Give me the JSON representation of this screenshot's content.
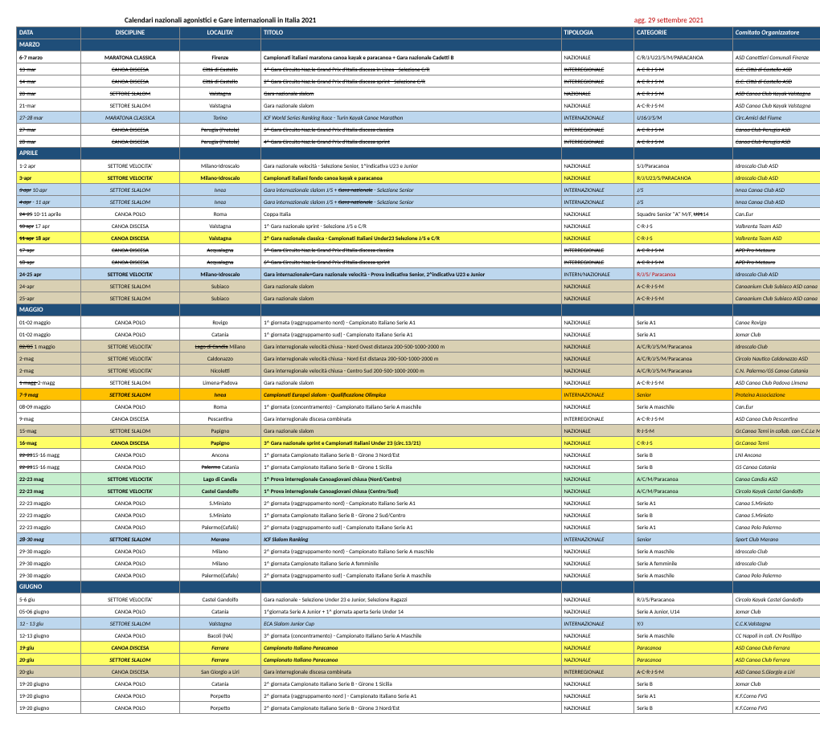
{
  "title": "Calendari nazionali agonistici e Gare internazionali in Italia 2021",
  "updated": "agg. 29 settembre 2021",
  "headers": [
    "DATA",
    "DISCIPLINE",
    "LOCALITA'",
    "TITOLO",
    "TIPOLOGIA",
    "CATEGORIE",
    "Comitato Organizzatore"
  ],
  "months": {
    "MARZO": "MARZO",
    "APRILE": "APRILE",
    "MAGGIO": "MAGGIO",
    "GIUGNO": "GIUGNO"
  },
  "rows": [
    {
      "m": "MARZO"
    },
    {
      "d": "6-7 marzo",
      "disc": "MARATONA CLASSICA",
      "loc": "Firenze",
      "tit": "Campionati italiani maratona canoa kayak e paracanoa + Gara nazionale Cadetti B",
      "tip": "NAZIONALE",
      "cat": "C/R/J/U23/S/M/PARACANOA",
      "org": "ASD Canottieri Comunali Firenze",
      "b": 1
    },
    {
      "d": "13-mar",
      "disc": "CANOA DISCESA",
      "loc": "Città di Castello",
      "tit": "1^ Gara Circuito Naz.le Grand Prix d'Italia discesa in Linea - Selezione C/R",
      "tip": "INTERREGIONALE",
      "cat": "A-C-R-J-S-M",
      "org": "G.C. Città di Castello ASD",
      "s": 1
    },
    {
      "d": "14-mar",
      "disc": "CANOA DISCESA",
      "loc": "Città di Castello",
      "tit": "2^ Gara Circuito Naz.le Grand Prix d'Italia discesa sprint - Selezione C/R",
      "tip": "INTERREGIONALE",
      "cat": "A-C-R-J-S-M",
      "org": "G.C. Città di Castello ASD",
      "s": 1
    },
    {
      "d": "20-mar",
      "disc": "SETTORE SLALOM",
      "loc": "Valstagna",
      "tit": "Gara nazionale slalom",
      "tip": "NAZIONALE",
      "cat": "A-C-R-J-S-M",
      "org": "ASD Canoa Club Kayak Valstagna",
      "s": 1
    },
    {
      "d": "21-mar",
      "disc": "SETTORE SLALOM",
      "loc": "Valstagna",
      "tit": "Gara nazionale slalom",
      "tip": "NAZIONALE",
      "cat": "A-C-R-J-S-M",
      "org": "ASD Canoa Club Kayak Valstagna"
    },
    {
      "d": "27-28 mar",
      "disc": "MARATONA CLASSICA",
      "loc": "Torino",
      "tit": "ICF World Series Ranking Race - Turin Kayak Canoe Marathon",
      "tip": "INTERNAZIONALE",
      "cat": "U16/J/S/M",
      "org": "Circ.Amici del Fiume",
      "i": 1,
      "bg": "blue"
    },
    {
      "d": "27-mar",
      "disc": "CANOA DISCESA",
      "loc": "Perugia (Pretola)",
      "tit": "3^ Gara Circuito Naz.le Grand Prix d'Italia discesa classica",
      "tip": "INTERREGIONALE",
      "cat": "A-C-R-J-S-M",
      "org": "Canoa Club Perugia ASD",
      "s": 1
    },
    {
      "d": "28-mar",
      "disc": "CANOA DISCESA",
      "loc": "Perugia (Pretola)",
      "tit": "4^ Gara Circuito Naz.le Grand Prix d'Italia discesa sprint",
      "tip": "INTERREGIONALE",
      "cat": "A-C-R-J-S-M",
      "org": "Canoa Club Perugia ASD",
      "s": 1
    },
    {
      "m": "APRILE"
    },
    {
      "d": "1-2 apr",
      "disc": "SETTORE VELOCITA'",
      "loc": "Milano-Idroscalo",
      "tit": "Gara nazionale velocità - Selezione Senior, 1^indicativa U23 e Junior",
      "tip": "NAZIONALE",
      "cat": "S/J/Paracanoa",
      "org": "Idroscalo Club ASD"
    },
    {
      "d": "3-apr",
      "disc": "SETTORE VELOCITA'",
      "loc": "Milano-Idroscalo",
      "tit": "Campionati italiani fondo canoa kayak e paracanoa",
      "tip": "NAZIONALE",
      "cat": "R/J/U23/S/PARACANOA",
      "org": "Idroscalo Club ASD",
      "b": 1,
      "bg": "yellow"
    },
    {
      "d": "<s>3 apr</s> 10 apr",
      "disc": "SETTORE SLALOM",
      "loc": "Ivrea",
      "tit": "Gara internazionale slalom J/S + <s>Gara nazionale</s> - Selezione Senior",
      "tip": "INTERNAZIONALE",
      "cat": "J/S",
      "org": "Ivrea Canoa Club ASD",
      "i": 1,
      "bg": "blue"
    },
    {
      "d": "<s>4 apr</s> - 11 apr",
      "disc": "SETTORE SLALOM",
      "loc": "Ivrea",
      "tit": "Gara internazionale slalom J/S + <s>Gara nazionale</s> - Selezione Senior",
      "tip": "INTERNAZIONALE",
      "cat": "J/S",
      "org": "Ivrea Canoa Club ASD",
      "i": 1,
      "bg": "blue"
    },
    {
      "d": "<s>24-25</s> 10-11 aprile",
      "disc": "CANOA POLO",
      "loc": "Roma",
      "tit": "Coppa Italia",
      "tip": "NAZIONALE",
      "cat": "Squadre Senior \"A\" M/F, <s>U21</s>14",
      "org": "Can.Eur"
    },
    {
      "d": "<s>10 apr</s> 17 apr",
      "disc": "CANOA DISCESA",
      "loc": "Valstagna",
      "tit": "1^ Gara nazionale sprint - Selezione J/S e C/R",
      "tip": "NAZIONALE",
      "cat": "C-R-J-S",
      "org": "Valbrenta Team ASD"
    },
    {
      "d": "<s>11 apr</s> 18 apr",
      "disc": "CANOA DISCESA",
      "loc": "Valstagna",
      "tit": "2^ Gara nazionale classica - Campionati Italiani Under23 Selezione J/S e C/R",
      "tip": "NAZIONALE",
      "cat": "C-R-J-S",
      "org": "Valbrenta Team ASD",
      "b": 1,
      "bg": "yellow"
    },
    {
      "d": "17-apr",
      "disc": "CANOA DISCESA",
      "loc": "Acqualagna",
      "tit": "5^ Gara Circuito Naz.le Grand Prix d'Italia discesa classica",
      "tip": "INTERREGIONALE",
      "cat": "A-C-R-J-S-M",
      "org": "APD Pro Metauro",
      "s": 1
    },
    {
      "d": "18-apr",
      "disc": "CANOA DISCESA",
      "loc": "Acqualagna",
      "tit": "6^ Gara Circuito Naz.le Grand Prix d'Italia discesa sprint",
      "tip": "INTERREGIONALE",
      "cat": "A-C-R-J-S-M",
      "org": "APD Pro Metauro",
      "s": 1
    },
    {
      "d": "24-25 apr",
      "disc": "SETTORE VELOCITA'",
      "loc": "Milano-Idroscalo",
      "tit": "Gara internazionale+Gara nazionale velocità - Prova indicativa Senior, 2^indicativa U23 e Junior",
      "tip": "INTERN/NAZIONALE",
      "cat": "R/J/S/ Paracanoa",
      "org": "Idroscalo Club ASD",
      "bg": "blue",
      "b": 1,
      "note": 1
    },
    {
      "d": "24-apr",
      "disc": "SETTORE SLALOM",
      "loc": "Subiaco",
      "tit": "Gara nazionale slalom",
      "tip": "NAZIONALE",
      "cat": "A-C-R-J-S-M",
      "org": "Canoanium Club Subiaco ASD canoa",
      "bg": "tan"
    },
    {
      "d": "25-apr",
      "disc": "SETTORE SLALOM",
      "loc": "Subiaco",
      "tit": "Gara nazionale slalom",
      "tip": "NAZIONALE",
      "cat": "A-C-R-J-S-M",
      "org": "Canoanium Club Subiaco ASD canoa",
      "bg": "tan"
    },
    {
      "m": "MAGGIO"
    },
    {
      "d": "01-02 maggio",
      "disc": "CANOA POLO",
      "loc": "Rovigo",
      "tit": "1^ giornata (raggruppamento nord) - Campionato Italiano Serie A1",
      "tip": "NAZIONALE",
      "cat": "Serie A1",
      "org": "Canoe Rovigo"
    },
    {
      "d": "01-02 maggio",
      "disc": "CANOA POLO",
      "loc": "Catania",
      "tit": "1^ giornata (raggruppamento sud) - Campionato Italiano Serie A1",
      "tip": "NAZIONALE",
      "cat": "Serie A1",
      "org": "Jomar Club"
    },
    {
      "d": "<s>02/05</s> 1 maggio",
      "disc": "SETTORE VELOCITA'",
      "loc": "<s>Lago di Candia</s> Milano",
      "tit": "Gara interregionale velocità chiusa - Nord Ovest distanza 200-500-1000-2000 m",
      "tip": "NAZIONALE",
      "cat": "A/C/R/J/S/M/Paracanoa",
      "org": "Idroscalo Club",
      "bg": "tan"
    },
    {
      "d": "2-mag",
      "disc": "SETTORE VELOCITA'",
      "loc": "Caldonazzo",
      "tit": "Gara interregionale velocità chiusa - Nord Est distanza 200-500-1000-2000 m",
      "tip": "NAZIONALE",
      "cat": "A/C/R/J/S/M/Paracanoa",
      "org": "Circolo Nautico Caldonazzo ASD",
      "bg": "tan"
    },
    {
      "d": "2-mag",
      "disc": "SETTORE VELOCITA'",
      "loc": "Nicoletti",
      "tit": "Gara interregionale velocità chiusa - Centro Sud 200-500-1000-2000 m",
      "tip": "NAZIONALE",
      "cat": "A/C/R/J/S/M/Paracanoa",
      "org": "C.N. Palermo/GS Canoa Catania",
      "bg": "tan"
    },
    {
      "d": "<s>1 magg-</s>2-magg",
      "disc": "SETTORE SLALOM",
      "loc": "Limena-Padova",
      "tit": "Gara nazionale slalom",
      "tip": "NAZIONALE",
      "cat": "A-C-R-J-S-M",
      "org": "ASD Canoa Club Padova Limena"
    },
    {
      "d": "7-9 mag",
      "disc": "SETTORE SLALOM",
      "loc": "Ivrea",
      "tit": "Campionati Europei slalom - Qualificazione Olimpica",
      "tip": "INTERNAZIONALE",
      "cat": "Senior",
      "org": "Proteina Associazione",
      "i": 1,
      "bg": "orange",
      "b": 1
    },
    {
      "d": "08-09 maggio",
      "disc": "CANOA POLO",
      "loc": "Roma",
      "tit": "1^ giornata (concentramento) - Campionato Italiano Serie A maschile",
      "tip": "NAZIONALE",
      "cat": "Serie A maschile",
      "org": "Can.Eur"
    },
    {
      "d": "9-mag",
      "disc": "CANOA DISCESA",
      "loc": "Pescantina",
      "tit": "Gara interregionale discesa combinata",
      "tip": "INTERREGIONALE",
      "cat": "A-C-R-J-S-M",
      "org": "ASD Canoa Club Pescantina"
    },
    {
      "d": "15-mag",
      "disc": "SETTORE SLALOM",
      "loc": "Papigno",
      "tit": "Gara nazionale slalom",
      "tip": "NAZIONALE",
      "cat": "R-J-S-M",
      "org": "Gr.Canoa Terni in collab. con C.C.Le Marmore",
      "bg": "tan"
    },
    {
      "d": "16-mag",
      "disc": "CANOA DISCESA",
      "loc": "Papigno",
      "tit": "3^ Gara nazionale sprint e Campionati Italiani Under 23 (circ.13/21)",
      "tip": "NAZIONALE",
      "cat": "C-R-J-S",
      "org": "Gr.Canoa Terni",
      "bg": "yellow",
      "b": 1
    },
    {
      "d": "<s>22-23</s>15-16 magg",
      "disc": "CANOA POLO",
      "loc": "Ancona",
      "tit": "1^ giornata Campionato Italiano Serie B - Girone 3 Nord/Est",
      "tip": "NAZIONALE",
      "cat": "Serie B",
      "org": "LNI Ancona"
    },
    {
      "d": "<s>22-23</s>15-16 magg",
      "disc": "CANOA POLO",
      "loc": "<s>Palermo</s> Catania",
      "tit": "1^ giornata Campionato Italiano Serie B - Girone 1 Sicilia",
      "tip": "NAZIONALE",
      "cat": "Serie B",
      "org": "GS Canoa Catania"
    },
    {
      "d": "22-23 mag",
      "disc": "SETTORE VELOCITA'",
      "loc": "Lago di Candia",
      "tit": "1^ Prova interregionale Canoagiovani chiusa (Nord/Centro)",
      "tip": "NAZIONALE",
      "cat": "A/C/M/Paracanoa",
      "org": "Canoa Candia ASD",
      "bg": "green",
      "b": 1
    },
    {
      "d": "22-23 mag",
      "disc": "SETTORE VELOCITA'",
      "loc": "Castel Gandolfo",
      "tit": "1^ Prova interregionale Canoagiovani chiusa (Centro/Sud)",
      "tip": "NAZIONALE",
      "cat": "A/C/M/Paracanoa",
      "org": "Circolo Kayak Castel Gandolfo",
      "bg": "green",
      "b": 1
    },
    {
      "d": "22-23 maggio",
      "disc": "CANOA POLO",
      "loc": "S.Miniato",
      "tit": "2^ giornata (raggruppamento nord) - Campionato Italiano Serie A1",
      "tip": "NAZIONALE",
      "cat": "Serie A1",
      "org": "Canoa S.Miniato"
    },
    {
      "d": "22-23 maggio",
      "disc": "CANOA POLO",
      "loc": "S.Miniato",
      "tit": "1^ giornata Campionato Italiano Serie B - Girone 2 Sud/Centro",
      "tip": "NAZIONALE",
      "cat": "Serie B",
      "org": "Canoa S.Miniato"
    },
    {
      "d": "22-23 maggio",
      "disc": "CANOA POLO",
      "loc": "Palermo(Cefalù)",
      "tit": "2^ giornata (raggruppamento sud) - Campionato Italiano Serie A1",
      "tip": "NAZIONALE",
      "cat": "Serie A1",
      "org": "Canoa Polo Palermo"
    },
    {
      "d": "28-30 mag",
      "disc": "SETTORE SLALOM",
      "loc": "Merano",
      "tit": "ICF Slalom Ranking",
      "tip": "INTERNAZIONALE",
      "cat": "Senior",
      "org": "Sport Club Merano",
      "i": 1,
      "bg": "blue",
      "b": 1
    },
    {
      "d": "29-30 maggio",
      "disc": "CANOA POLO",
      "loc": "Milano",
      "tit": "2^ giornata (raggruppamento nord) - Campionato Italiano Serie A maschile",
      "tip": "NAZIONALE",
      "cat": "Serie A maschile",
      "org": "Idroscalo Club"
    },
    {
      "d": "29-30 maggio",
      "disc": "CANOA POLO",
      "loc": "Milano",
      "tit": "1^ giornata Campionato Italiano Serie A femminile",
      "tip": "NAZIONALE",
      "cat": "Serie A femminile",
      "org": "Idroscalo Club"
    },
    {
      "d": "29-30 maggio",
      "disc": "CANOA POLO",
      "loc": "Palermo(Cefalu)",
      "tit": "2^ giornata (raggruppamento sud) - Campionato Italiano Serie A maschile",
      "tip": "NAZIONALE",
      "cat": "Serie A maschile",
      "org": "Canoa Polo Palermo"
    },
    {
      "m": "GIUGNO"
    },
    {
      "d": "5-6 giu",
      "disc": "SETTORE VELOCITA'",
      "loc": "Castel Gandolfo",
      "tit": "Gara nazionale - Selezione Under 23 e Junior, Selezione Ragazzi",
      "tip": "NAZIONALE",
      "cat": "R/J/S/Paracanoa",
      "org": "Circolo Kayak Castel Gandolfo"
    },
    {
      "d": "05-06 giugno",
      "disc": "CANOA POLO",
      "loc": "Catania",
      "tit": "1^giornata Serie A Junior + 1^ giornata aperta Serie Under 14",
      "tip": "NAZIONALE",
      "cat": "Serie A Junior, U14",
      "org": "Jomar Club"
    },
    {
      "d": "12 - 13 giu",
      "disc": "SETTORE SLALOM",
      "loc": "Valstagna",
      "tit": "ECA Slalom Junior Cup",
      "tip": "INTERNAZIONALE",
      "cat": "Y/J",
      "org": "C.C.K.Valstagna",
      "i": 1,
      "bg": "blue"
    },
    {
      "d": "12-13 giugno",
      "disc": "CANOA POLO",
      "loc": "Bacoli (NA)",
      "tit": "3^ giornata (concentramento) - Campionato Italiano Serie A Maschile",
      "tip": "NAZIONALE",
      "cat": "Serie A maschile",
      "org": "CC Napoli in coll. CN Posillipo"
    },
    {
      "d": "19-giu",
      "disc": "CANOA DISCESA",
      "loc": "Ferrara",
      "tit": "Campionato Italiano Paracanoa",
      "tip": "NAZIONALE",
      "cat": "Paracanoa",
      "org": "ASD Canoa Club Ferrara",
      "bg": "yellow",
      "b": 1,
      "i": 1
    },
    {
      "d": "20-giu",
      "disc": "SETTORE SLALOM",
      "loc": "Ferrara",
      "tit": "Campionato Italiano Paracanoa",
      "tip": "NAZIONALE",
      "cat": "Paracanoa",
      "org": "ASD Canoa Club Ferrara",
      "bg": "yellow",
      "b": 1,
      "i": 1
    },
    {
      "d": "20-giu",
      "disc": "CANOA DISCESA",
      "loc": "San Giorgio a Liri",
      "tit": "Gara interregionale discesa combinata",
      "tip": "INTERREGIONALE",
      "cat": "A-C-R-J-S-M",
      "org": "ASD Canoa S.Giorgio a Liri",
      "bg": "tan"
    },
    {
      "d": "19-20 giugno",
      "disc": "CANOA POLO",
      "loc": "Catania",
      "tit": "2^ giornata Campionato Italiano Serie B - Girone 1 Sicilia",
      "tip": "NAZIONALE",
      "cat": "Serie B",
      "org": "Jomar Club"
    },
    {
      "d": "19-20 giugno",
      "disc": "CANOA POLO",
      "loc": "Porpetto",
      "tit": "2^ giornata (raggruppamento nord ) - Campionato Italiano Serie A1",
      "tip": "NAZIONALE",
      "cat": "Serie A1",
      "org": "K.F.Corno FVG"
    },
    {
      "d": "19-20 giugno",
      "disc": "CANOA POLO",
      "loc": "Porpetto",
      "tit": "2^ giornata Campionato Italiano Serie B - Girone 3 Nord/Est",
      "tip": "NAZIONALE",
      "cat": "Serie B",
      "org": "K.F.Corno FVG"
    }
  ]
}
